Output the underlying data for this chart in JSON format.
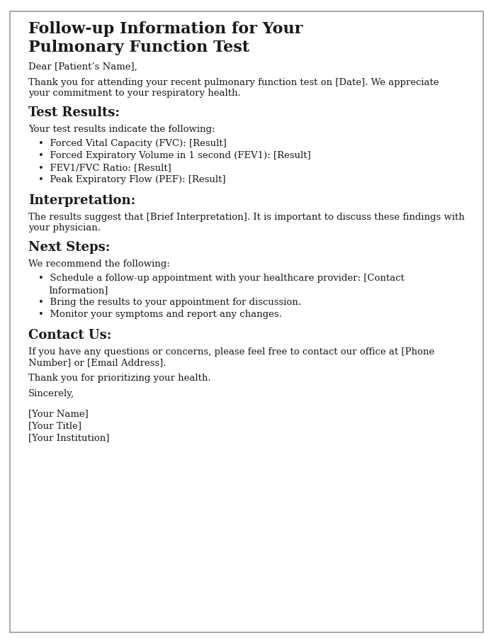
{
  "bg_color": "#ffffff",
  "border_color": "#999999",
  "text_color": "#1a1a1a",
  "title_line1": "Follow-up Information for Your",
  "title_line2": "Pulmonary Function Test",
  "title_fontsize": 16,
  "heading_fontsize": 13,
  "body_fontsize": 9.5,
  "salutation": "Dear [Patient’s Name],",
  "intro_line1": "Thank you for attending your recent pulmonary function test on [Date]. We appreciate",
  "intro_line2": "your commitment to your respiratory health.",
  "section1_heading": "Test Results:",
  "section1_body": "Your test results indicate the following:",
  "section1_bullets": [
    "Forced Vital Capacity (FVC): [Result]",
    "Forced Expiratory Volume in 1 second (FEV1): [Result]",
    "FEV1/FVC Ratio: [Result]",
    "Peak Expiratory Flow (PEF): [Result]"
  ],
  "section2_heading": "Interpretation:",
  "section2_body_line1": "The results suggest that [Brief Interpretation]. It is important to discuss these findings with",
  "section2_body_line2": "your physician.",
  "section3_heading": "Next Steps:",
  "section3_body": "We recommend the following:",
  "section3_bullets": [
    [
      "Schedule a follow-up appointment with your healthcare provider: [Contact",
      "Information]"
    ],
    [
      "Bring the results to your appointment for discussion."
    ],
    [
      "Monitor your symptoms and report any changes."
    ]
  ],
  "section4_heading": "Contact Us:",
  "section4_body_line1": "If you have any questions or concerns, please feel free to contact our office at [Phone",
  "section4_body_line2": "Number] or [Email Address].",
  "closing1": "Thank you for prioritizing your health.",
  "closing2": "Sincerely,",
  "closing3": "[Your Name]",
  "closing4": "[Your Title]",
  "closing5": "[Your Institution]"
}
